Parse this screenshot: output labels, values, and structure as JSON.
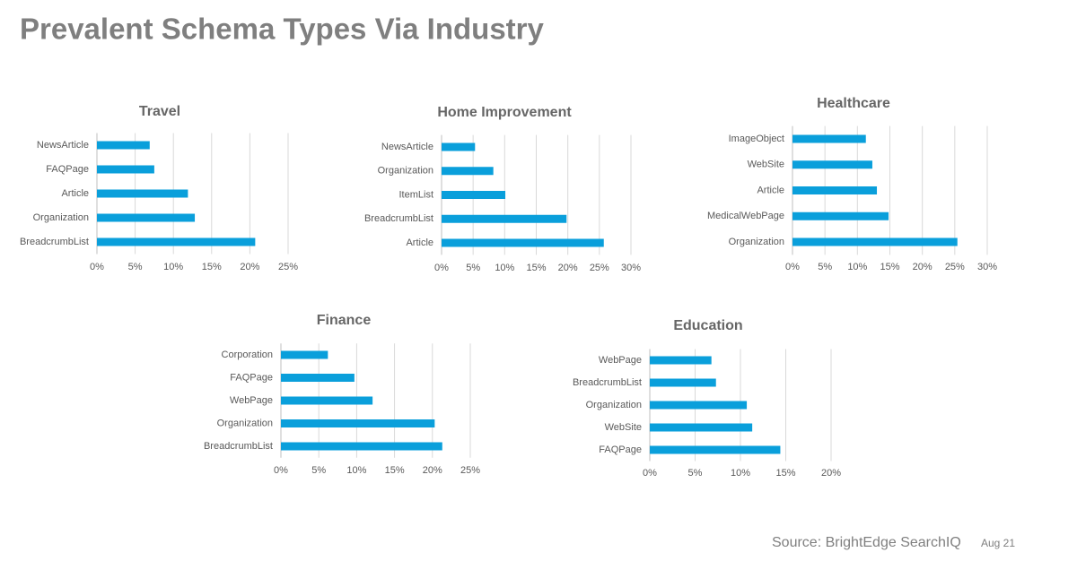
{
  "title": "Prevalent Schema Types Via Industry",
  "source": "Source: BrightEdge SearchIQ",
  "date": "Aug 21",
  "chart_data": [
    {
      "type": "hbar",
      "title": "Travel",
      "color": "#0a9fdb",
      "categories": [
        "NewsArticle",
        "FAQPage",
        "Article",
        "Organization",
        "BreadcrumbList"
      ],
      "values": [
        6.9,
        7.5,
        11.9,
        12.8,
        20.7
      ],
      "xlim": [
        0,
        25
      ],
      "xticks": [
        {
          "value": 0,
          "label": "0%"
        },
        {
          "value": 5,
          "label": "5%"
        },
        {
          "value": 10,
          "label": "10%"
        },
        {
          "value": 15,
          "label": "15%"
        },
        {
          "value": 20,
          "label": "20%"
        },
        {
          "value": 25,
          "label": "25%"
        }
      ],
      "grid": true
    },
    {
      "type": "hbar",
      "title": "Home Improvement",
      "color": "#0a9fdb",
      "categories": [
        "NewsArticle",
        "Organization",
        "ItemList",
        "BreadcrumbList",
        "Article"
      ],
      "values": [
        5.3,
        8.2,
        10.1,
        19.8,
        25.7
      ],
      "xlim": [
        0,
        30
      ],
      "xticks": [
        {
          "value": 0,
          "label": "0%"
        },
        {
          "value": 5,
          "label": "5%"
        },
        {
          "value": 10,
          "label": "10%"
        },
        {
          "value": 15,
          "label": "15%"
        },
        {
          "value": 20,
          "label": "20%"
        },
        {
          "value": 25,
          "label": "25%"
        },
        {
          "value": 30,
          "label": "30%"
        }
      ],
      "grid": true
    },
    {
      "type": "hbar",
      "title": "Healthcare",
      "color": "#0a9fdb",
      "categories": [
        "ImageObject",
        "WebSite",
        "Article",
        "MedicalWebPage",
        "Organization"
      ],
      "values": [
        11.3,
        12.3,
        13.0,
        14.8,
        25.4
      ],
      "xlim": [
        0,
        30
      ],
      "xticks": [
        {
          "value": 0,
          "label": "0%"
        },
        {
          "value": 5,
          "label": "5%"
        },
        {
          "value": 10,
          "label": "10%"
        },
        {
          "value": 15,
          "label": "15%"
        },
        {
          "value": 20,
          "label": "20%"
        },
        {
          "value": 25,
          "label": "25%"
        },
        {
          "value": 30,
          "label": "30%"
        }
      ],
      "grid": true
    },
    {
      "type": "hbar",
      "title": "Finance",
      "color": "#0a9fdb",
      "categories": [
        "Corporation",
        "FAQPage",
        "WebPage",
        "Organization",
        "BreadcrumbList"
      ],
      "values": [
        6.2,
        9.7,
        12.1,
        20.3,
        21.3
      ],
      "xlim": [
        0,
        25
      ],
      "xticks": [
        {
          "value": 0,
          "label": "0%"
        },
        {
          "value": 5,
          "label": "5%"
        },
        {
          "value": 10,
          "label": "10%"
        },
        {
          "value": 15,
          "label": "15%"
        },
        {
          "value": 20,
          "label": "20%"
        },
        {
          "value": 25,
          "label": "25%"
        }
      ],
      "grid": true
    },
    {
      "type": "hbar",
      "title": "Education",
      "color": "#0a9fdb",
      "categories": [
        "WebPage",
        "BreadcrumbList",
        "Organization",
        "WebSite",
        "FAQPage"
      ],
      "values": [
        6.8,
        7.3,
        10.7,
        11.3,
        14.4
      ],
      "xlim": [
        0,
        20
      ],
      "xticks": [
        {
          "value": 0,
          "label": "0%"
        },
        {
          "value": 5,
          "label": "5%"
        },
        {
          "value": 10,
          "label": "10%"
        },
        {
          "value": 15,
          "label": "15%"
        },
        {
          "value": 20,
          "label": "20%"
        }
      ],
      "grid": true
    }
  ]
}
